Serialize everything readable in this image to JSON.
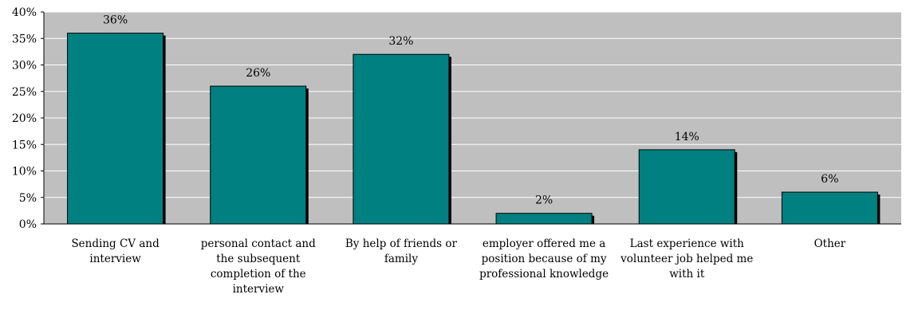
{
  "colors": {
    "plot_background": "#bfbfbf",
    "bar_fill": "#008080",
    "bar_shadow": "#000000",
    "gridline": "#ffffff",
    "axis": "#000000"
  },
  "chart_data": {
    "type": "bar",
    "title": "",
    "xlabel": "",
    "ylabel": "",
    "ylim": [
      0,
      40
    ],
    "y_ticks": [
      0,
      5,
      10,
      15,
      20,
      25,
      30,
      35,
      40
    ],
    "y_tick_labels": [
      "0%",
      "5%",
      "10%",
      "15%",
      "20%",
      "25%",
      "30%",
      "35%",
      "40%"
    ],
    "grid": true,
    "legend": "none",
    "categories": [
      "Sending CV and interview",
      "personal contact and the subsequent completion of the interview",
      "By help of friends or family",
      "employer offered me a position because of my professional knowledge",
      "Last experience with volunteer job helped me with it",
      "Other"
    ],
    "values": [
      36,
      26,
      32,
      2,
      14,
      6
    ],
    "data_labels": [
      "36%",
      "26%",
      "32%",
      "2%",
      "14%",
      "6%"
    ]
  }
}
